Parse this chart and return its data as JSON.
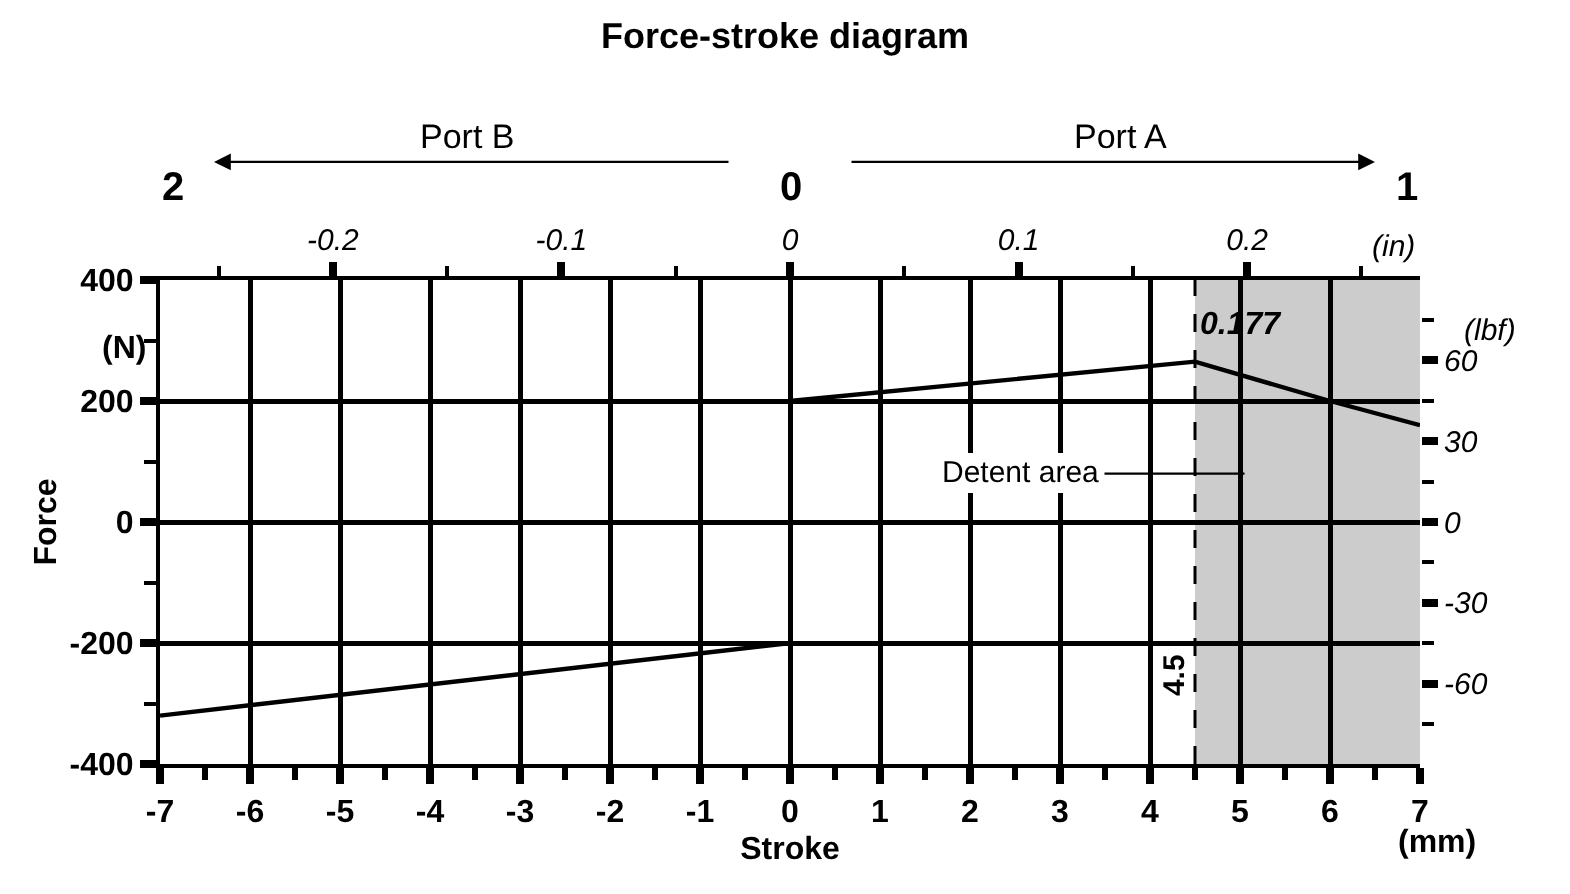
{
  "chart_data": {
    "type": "line",
    "title": "Force-stroke diagram",
    "xlabel": "Stroke",
    "ylabel": "Force",
    "series": [
      {
        "color": "#000000",
        "x": [
          -7,
          0
        ],
        "values": [
          -320,
          -200
        ]
      },
      {
        "color": "#000000",
        "x": [
          0,
          4.5,
          6,
          7
        ],
        "values": [
          200,
          265,
          200,
          160
        ]
      }
    ],
    "xlim": [
      -7,
      7
    ],
    "xticks": [
      -7,
      -6,
      -5,
      -4,
      -3,
      -2,
      -1,
      0,
      1,
      2,
      3,
      4,
      5,
      6,
      7
    ],
    "ylim": [
      -400,
      400
    ],
    "yticks": [
      -400,
      -200,
      0,
      200,
      400
    ],
    "y2lim": [
      -89.9,
      89.9
    ],
    "y2ticks": [
      -60,
      -30,
      0,
      30,
      60
    ],
    "x2lim": [
      -0.2756,
      0.2756
    ],
    "x2ticks": [
      -0.2,
      -0.1,
      0,
      0.1,
      0.2
    ],
    "grid": true,
    "ref_lines": [
      {
        "axis": "x",
        "value": 4.5,
        "label": "4.5",
        "line_style": "dashed",
        "color": "#000000"
      }
    ],
    "bands": [
      {
        "axis": "x",
        "from": 4.5,
        "to": 7,
        "label": "Detent area",
        "color": "#cccccc"
      }
    ],
    "annotations": [
      "Port B",
      "Port A",
      "2",
      "0",
      "1",
      "(in)",
      "(N)",
      "(lbf)",
      "(mm)",
      {
        "text": "0.177",
        "x": 4.5
      }
    ]
  }
}
